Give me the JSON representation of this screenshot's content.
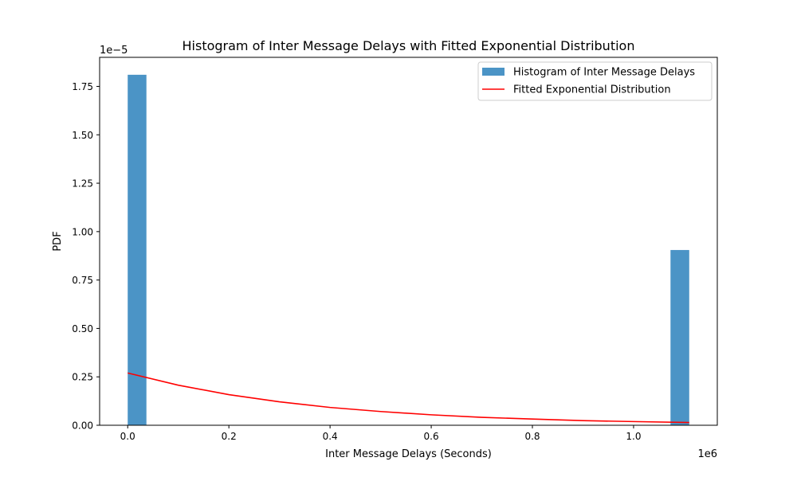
{
  "chart_data": {
    "type": "bar",
    "title": "Histogram of Inter Message Delays with Fitted Exponential Distribution",
    "xlabel": "Inter Message Delays (Seconds)",
    "ylabel": "PDF",
    "x_offset_label": "1e6",
    "y_offset_label": "1e−5",
    "xlim": [
      -0.0555,
      1.1655
    ],
    "ylim": [
      0,
      1.9
    ],
    "x_scale_factor": 1000000,
    "y_scale_factor": 1e-05,
    "xticks": [
      0.0,
      0.2,
      0.4,
      0.6,
      0.8,
      1.0
    ],
    "xtick_labels": [
      "0.0",
      "0.2",
      "0.4",
      "0.6",
      "0.8",
      "1.0"
    ],
    "yticks": [
      0.0,
      0.25,
      0.5,
      0.75,
      1.0,
      1.25,
      1.5,
      1.75
    ],
    "ytick_labels": [
      "0.00",
      "0.25",
      "0.50",
      "0.75",
      "1.00",
      "1.25",
      "1.50",
      "1.75"
    ],
    "grid": false,
    "legend_placement": "top-right",
    "series": [
      {
        "name": "Histogram of Inter Message Delays",
        "kind": "histogram",
        "color": "#4b94c6",
        "bins": [
          {
            "x0": 0.0,
            "x1": 0.037,
            "value": 1.81
          },
          {
            "x0": 1.073,
            "x1": 1.11,
            "value": 0.905
          }
        ]
      },
      {
        "name": "Fitted Exponential Distribution",
        "kind": "line",
        "color": "#ff0000",
        "x": [
          0.0,
          0.1,
          0.2,
          0.3,
          0.4,
          0.5,
          0.6,
          0.7,
          0.8,
          0.9,
          1.0,
          1.11
        ],
        "y": [
          0.27,
          0.207,
          0.158,
          0.121,
          0.092,
          0.071,
          0.054,
          0.041,
          0.032,
          0.024,
          0.019,
          0.014
        ]
      }
    ]
  }
}
